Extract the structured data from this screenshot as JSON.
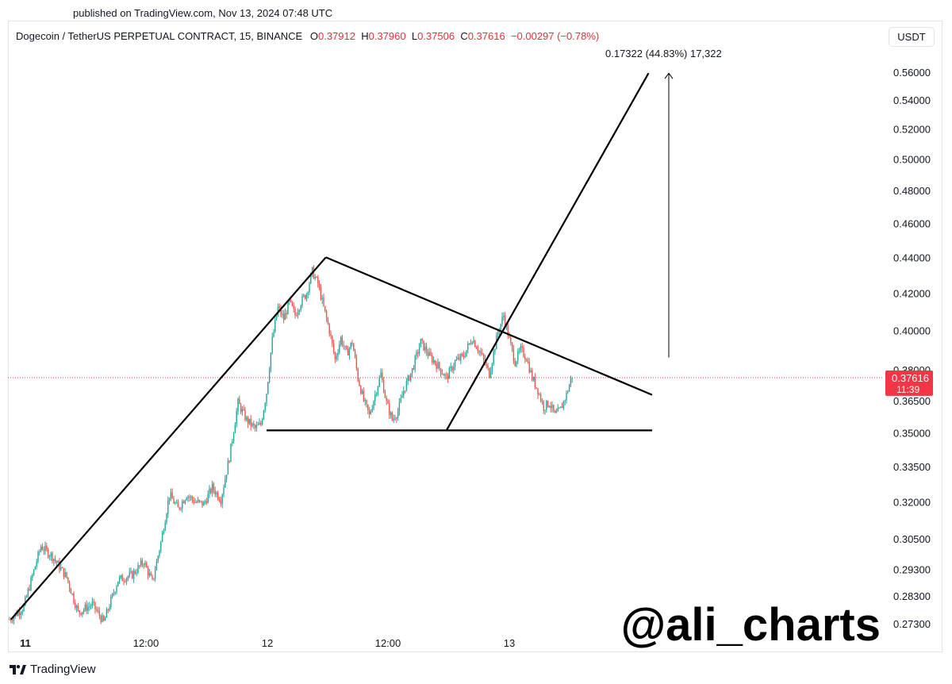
{
  "header": {
    "published": "published on TradingView.com, Nov 13, 2024 07:48 UTC",
    "symbol": "Dogecoin / TetherUS PERPETUAL CONTRACT, 15, BINANCE",
    "o_label": "O",
    "o_value": "0.37912",
    "h_label": "H",
    "h_value": "0.37960",
    "l_label": "L",
    "l_value": "0.37506",
    "c_label": "C",
    "c_value": "0.37616",
    "change": "−0.00297 (−0.78%)",
    "currency": "USDT"
  },
  "footer": {
    "brand": "TradingView",
    "logo_icon": "tradingview-logo-icon"
  },
  "watermark": "@ali_charts",
  "colors": {
    "up": "#26a69a",
    "down": "#ef5350",
    "price_label": "#f23645",
    "lines": "#000000"
  },
  "chart_data": {
    "type": "candlestick",
    "title": "Dogecoin / TetherUS PERPETUAL CONTRACT, 15, BINANCE",
    "xlabel": "",
    "ylabel": "",
    "x_ticks": [
      "11",
      "12:00",
      "12",
      "12:00",
      "13"
    ],
    "y_ticks": [
      "0.56000",
      "0.54000",
      "0.52000",
      "0.50000",
      "0.48000",
      "0.46000",
      "0.44000",
      "0.42000",
      "0.40000",
      "0.38000",
      "0.36500",
      "0.35000",
      "0.33500",
      "0.32000",
      "0.30500",
      "0.29300",
      "0.28300",
      "0.27300"
    ],
    "y_scale": "log",
    "ylim": [
      0.266,
      0.576
    ],
    "last_price": {
      "value": "0.37616",
      "countdown": "11:39"
    },
    "measure": {
      "label": "0.17322 (44.83%) 17,322",
      "from": 0.3862,
      "to": 0.5593
    },
    "path": [
      [
        0,
        0.2745
      ],
      [
        10,
        0.279
      ],
      [
        22,
        0.302
      ],
      [
        30,
        0.298
      ],
      [
        40,
        0.29
      ],
      [
        48,
        0.277
      ],
      [
        58,
        0.28
      ],
      [
        66,
        0.2735
      ],
      [
        76,
        0.289
      ],
      [
        86,
        0.291
      ],
      [
        94,
        0.296
      ],
      [
        100,
        0.288
      ],
      [
        106,
        0.3035
      ],
      [
        112,
        0.323
      ],
      [
        118,
        0.317
      ],
      [
        124,
        0.323
      ],
      [
        130,
        0.32
      ],
      [
        136,
        0.319
      ],
      [
        142,
        0.326
      ],
      [
        148,
        0.321
      ],
      [
        154,
        0.339
      ],
      [
        160,
        0.364
      ],
      [
        166,
        0.356
      ],
      [
        172,
        0.352
      ],
      [
        176,
        0.354
      ],
      [
        180,
        0.369
      ],
      [
        184,
        0.395
      ],
      [
        188,
        0.412
      ],
      [
        192,
        0.406
      ],
      [
        196,
        0.415
      ],
      [
        200,
        0.408
      ],
      [
        204,
        0.415
      ],
      [
        208,
        0.42
      ],
      [
        212,
        0.432
      ],
      [
        216,
        0.425
      ],
      [
        220,
        0.412
      ],
      [
        224,
        0.4
      ],
      [
        228,
        0.385
      ],
      [
        232,
        0.396
      ],
      [
        236,
        0.388
      ],
      [
        240,
        0.394
      ],
      [
        244,
        0.376
      ],
      [
        248,
        0.365
      ],
      [
        252,
        0.358
      ],
      [
        256,
        0.368
      ],
      [
        260,
        0.378
      ],
      [
        264,
        0.364
      ],
      [
        268,
        0.356
      ],
      [
        272,
        0.36
      ],
      [
        276,
        0.37
      ],
      [
        282,
        0.38
      ],
      [
        288,
        0.394
      ],
      [
        294,
        0.387
      ],
      [
        300,
        0.382
      ],
      [
        306,
        0.376
      ],
      [
        312,
        0.384
      ],
      [
        318,
        0.387
      ],
      [
        324,
        0.396
      ],
      [
        330,
        0.388
      ],
      [
        336,
        0.378
      ],
      [
        342,
        0.399
      ],
      [
        346,
        0.408
      ],
      [
        350,
        0.395
      ],
      [
        354,
        0.384
      ],
      [
        358,
        0.39
      ],
      [
        362,
        0.386
      ],
      [
        366,
        0.376
      ],
      [
        370,
        0.37
      ],
      [
        374,
        0.362
      ],
      [
        378,
        0.364
      ],
      [
        382,
        0.358
      ],
      [
        386,
        0.361
      ],
      [
        390,
        0.368
      ],
      [
        394,
        0.377
      ]
    ],
    "annotations": [
      {
        "name": "rally-trendline",
        "points": [
          [
            1.0,
            0.2745
          ],
          [
            221.5,
            0.44
          ]
        ]
      },
      {
        "name": "triangle-upper-line",
        "points": [
          [
            221.5,
            0.44
          ],
          [
            450,
            0.3678
          ]
        ]
      },
      {
        "name": "triangle-base-line",
        "points": [
          [
            180,
            0.3512
          ],
          [
            450,
            0.3512
          ]
        ]
      },
      {
        "name": "breakout-projection-line",
        "points": [
          [
            306,
            0.3512
          ],
          [
            447.5,
            0.5593
          ]
        ]
      }
    ]
  }
}
